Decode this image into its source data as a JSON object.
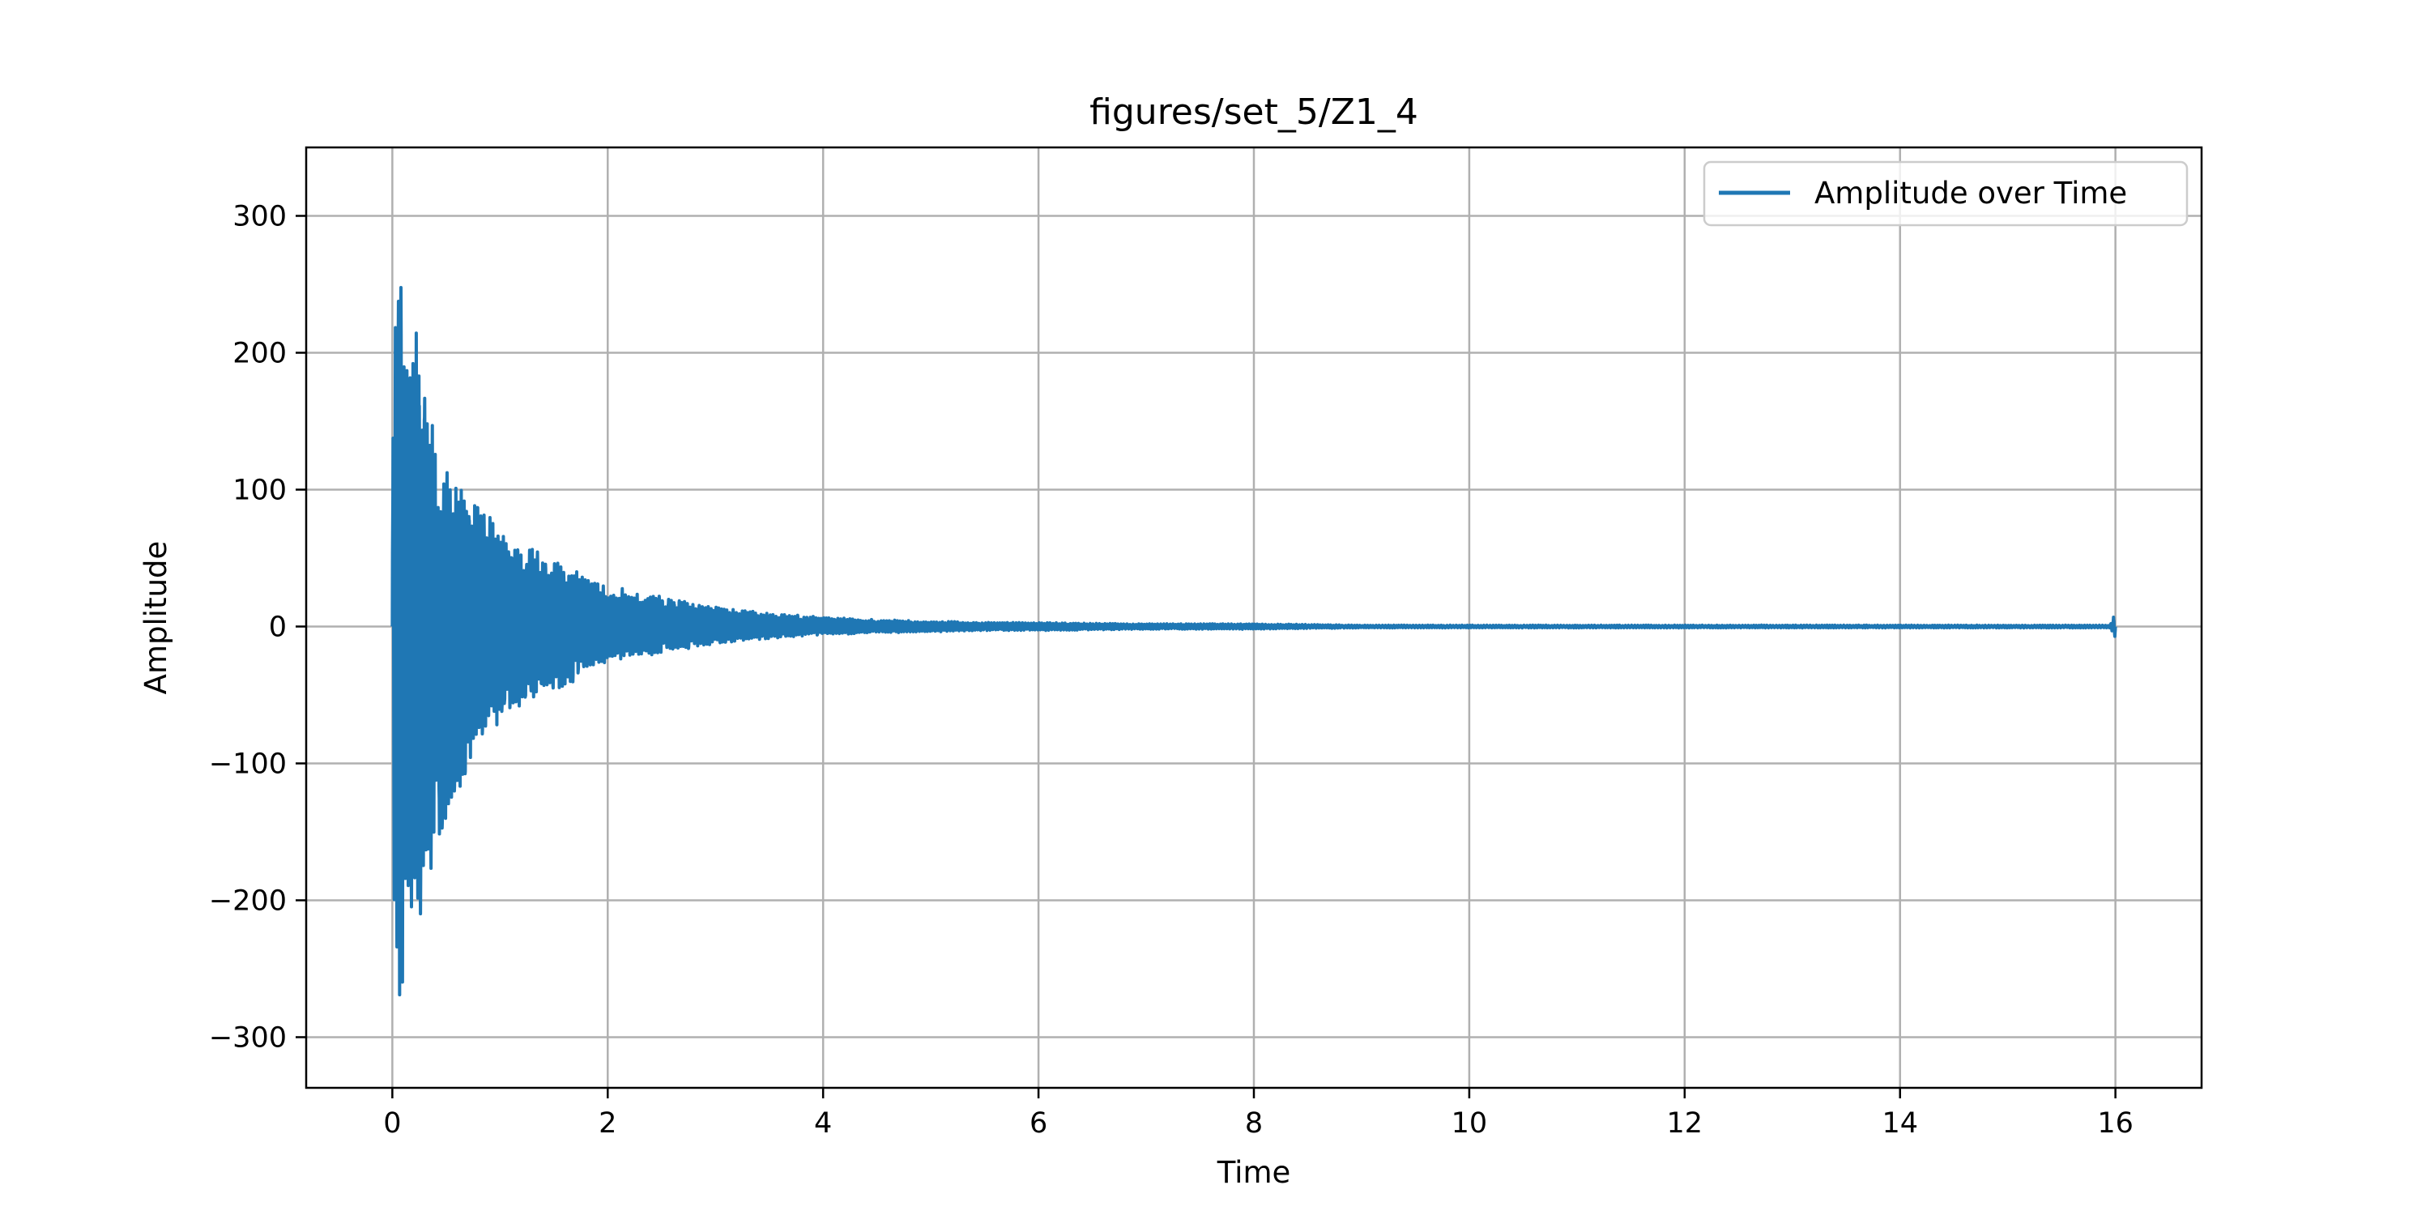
{
  "chart_data": {
    "type": "line",
    "title": "figures/set_5/Z1_4",
    "xlabel": "Time",
    "ylabel": "Amplitude",
    "xlim": [
      -0.8,
      16.8
    ],
    "ylim": [
      -337,
      350
    ],
    "xticks": [
      0,
      2,
      4,
      6,
      8,
      10,
      12,
      14,
      16
    ],
    "xtick_labels": [
      "0",
      "2",
      "4",
      "6",
      "8",
      "10",
      "12",
      "14",
      "16"
    ],
    "yticks": [
      -300,
      -200,
      -100,
      0,
      100,
      200,
      300
    ],
    "ytick_labels": [
      "−300",
      "−200",
      "−100",
      "0",
      "100",
      "200",
      "300"
    ],
    "grid": true,
    "legend_position": "top-right",
    "series": [
      {
        "name": "Amplitude over Time",
        "color": "#1f77b4",
        "envelope": {
          "t": [
            0.0,
            0.02,
            0.05,
            0.08,
            0.12,
            0.2,
            0.3,
            0.45,
            0.6,
            0.8,
            1.0,
            1.3,
            1.6,
            2.0,
            2.5,
            3.0,
            3.5,
            4.0,
            4.5,
            5.0,
            5.5,
            6.0,
            7.0,
            8.0,
            9.0,
            10.0,
            11.0,
            12.0,
            13.0,
            14.0,
            15.0,
            15.95,
            16.0
          ],
          "max": [
            110,
            262,
            305,
            318,
            230,
            228,
            185,
            120,
            115,
            95,
            75,
            58,
            50,
            30,
            22,
            15,
            10,
            7,
            5,
            4,
            3,
            3,
            2,
            2,
            1,
            1,
            1,
            1,
            1,
            1,
            1,
            1,
            12
          ],
          "min": [
            -30,
            -258,
            -240,
            -305,
            -220,
            -242,
            -200,
            -160,
            -130,
            -90,
            -70,
            -55,
            -45,
            -25,
            -20,
            -13,
            -9,
            -6,
            -5,
            -4,
            -3,
            -3,
            -2,
            -2,
            -1,
            -1,
            -1,
            -1,
            -1,
            -1,
            -1,
            -1,
            -10
          ]
        }
      }
    ]
  }
}
